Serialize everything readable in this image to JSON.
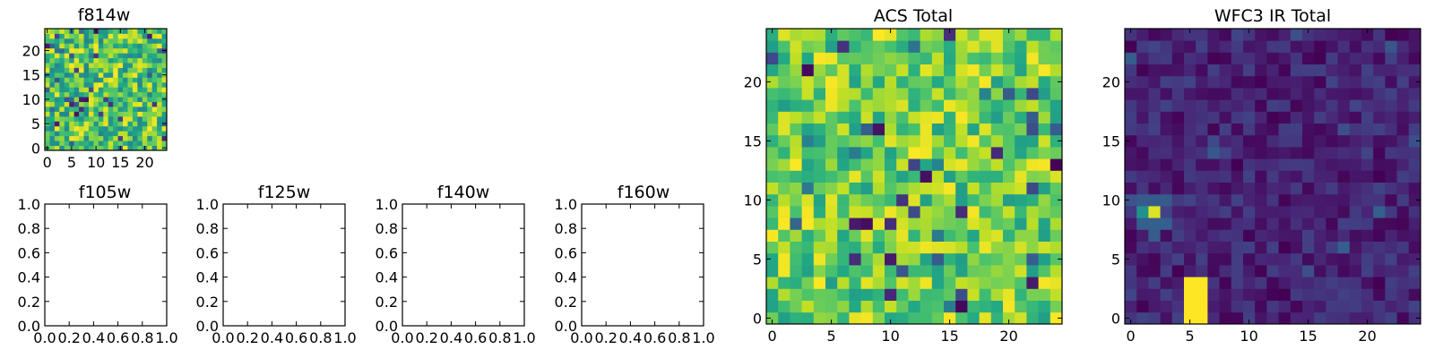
{
  "chart_data": [
    {
      "id": "f814w",
      "type": "heatmap",
      "title": "f814w",
      "grid_size": 25,
      "xlim": [
        -0.5,
        24.5
      ],
      "ylim": [
        -0.5,
        24.5
      ],
      "xticks": [
        0,
        5,
        10,
        15,
        20
      ],
      "yticks": [
        0,
        5,
        10,
        15,
        20
      ],
      "colormap": "viridis",
      "value_range": [
        0,
        1
      ],
      "pattern": "uniform_noise",
      "seed": 11
    },
    {
      "id": "f105w",
      "type": "empty",
      "title": "f105w",
      "xlim": [
        0,
        1
      ],
      "ylim": [
        0,
        1
      ],
      "xticks": [
        "0.0",
        "0.2",
        "0.4",
        "0.6",
        "0.8",
        "1.0"
      ],
      "yticks": [
        "0.0",
        "0.2",
        "0.4",
        "0.6",
        "0.8",
        "1.0"
      ]
    },
    {
      "id": "f125w",
      "type": "empty",
      "title": "f125w",
      "xlim": [
        0,
        1
      ],
      "ylim": [
        0,
        1
      ],
      "xticks": [
        "0.0",
        "0.2",
        "0.4",
        "0.6",
        "0.8",
        "1.0"
      ],
      "yticks": [
        "0.0",
        "0.2",
        "0.4",
        "0.6",
        "0.8",
        "1.0"
      ]
    },
    {
      "id": "f140w",
      "type": "empty",
      "title": "f140w",
      "xlim": [
        0,
        1
      ],
      "ylim": [
        0,
        1
      ],
      "xticks": [
        "0.0",
        "0.2",
        "0.4",
        "0.6",
        "0.8",
        "1.0"
      ],
      "yticks": [
        "0.0",
        "0.2",
        "0.4",
        "0.6",
        "0.8",
        "1.0"
      ]
    },
    {
      "id": "f160w",
      "type": "empty",
      "title": "f160w",
      "xlim": [
        0,
        1
      ],
      "ylim": [
        0,
        1
      ],
      "xticks": [
        "0.0",
        "0.2",
        "0.4",
        "0.6",
        "0.8",
        "1.0"
      ],
      "yticks": [
        "0.0",
        "0.2",
        "0.4",
        "0.6",
        "0.8",
        "1.0"
      ]
    },
    {
      "id": "acs_total",
      "type": "heatmap",
      "title": "ACS Total",
      "grid_size": 25,
      "xlim": [
        -0.5,
        24.5
      ],
      "ylim": [
        -0.5,
        24.5
      ],
      "xticks": [
        0,
        5,
        10,
        15,
        20
      ],
      "yticks": [
        0,
        5,
        10,
        15,
        20
      ],
      "colormap": "viridis",
      "value_range": [
        0,
        1
      ],
      "pattern": "uniform_noise_bright",
      "seed": 37
    },
    {
      "id": "wfc3_ir_total",
      "type": "heatmap",
      "title": "WFC3 IR Total",
      "grid_size": 25,
      "xlim": [
        -0.5,
        24.5
      ],
      "ylim": [
        -0.5,
        24.5
      ],
      "xticks": [
        0,
        5,
        10,
        15,
        20
      ],
      "yticks": [
        0,
        5,
        10,
        15,
        20
      ],
      "colormap": "viridis",
      "value_range": [
        0,
        1
      ],
      "pattern": "low_background",
      "seed": 73,
      "background_range": [
        0.0,
        0.2
      ],
      "hotspots": [
        {
          "x0": 5,
          "x1": 6,
          "y0": 0,
          "y1": 3,
          "value": 1.0
        },
        {
          "x0": 2,
          "x1": 2,
          "y0": 9,
          "y1": 9,
          "value": 0.95
        },
        {
          "x0": 1,
          "x1": 1,
          "y0": 9,
          "y1": 9,
          "value": 0.5
        },
        {
          "x0": 1,
          "x1": 3,
          "y0": 10,
          "y1": 10,
          "value": 0.28
        },
        {
          "x0": 1,
          "x1": 3,
          "y0": 8,
          "y1": 8,
          "value": 0.3
        },
        {
          "x0": 0,
          "x1": 0,
          "y0": 10,
          "y1": 10,
          "value": 0.25
        }
      ]
    }
  ]
}
